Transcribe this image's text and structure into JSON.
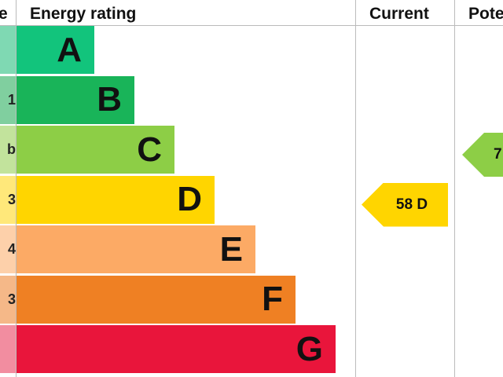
{
  "header": {
    "score": "e",
    "rating": "Energy rating",
    "current": "Current",
    "potential": "Pote"
  },
  "bands": [
    {
      "letter": "A",
      "score": null,
      "color": "#12c47c",
      "light": "#7fd9b3"
    },
    {
      "letter": "B",
      "score": "1",
      "color": "#19b459",
      "light": "#80cf9f"
    },
    {
      "letter": "C",
      "score": "b",
      "color": "#8dce46",
      "light": "#c2e39c"
    },
    {
      "letter": "D",
      "score": "3",
      "color": "#ffd500",
      "light": "#ffe87a"
    },
    {
      "letter": "E",
      "score": "4",
      "color": "#fcaa65",
      "light": "#fdd0aa"
    },
    {
      "letter": "F",
      "score": "3",
      "color": "#ef8023",
      "light": "#f5b888"
    },
    {
      "letter": "G",
      "score": null,
      "color": "#e9153b",
      "light": "#f28da0"
    }
  ],
  "current": {
    "text": "58 D",
    "color": "#ffd500",
    "band": 3
  },
  "potential": {
    "text": "7",
    "color": "#8dce46",
    "band": 2
  }
}
